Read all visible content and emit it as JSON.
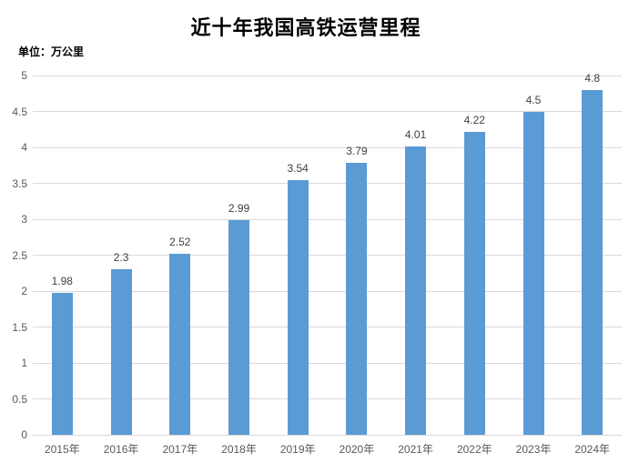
{
  "chart_data": {
    "type": "bar",
    "title": "近十年我国高铁运营里程",
    "unit_label": "单位：万公里",
    "categories": [
      "2015年",
      "2016年",
      "2017年",
      "2018年",
      "2019年",
      "2020年",
      "2021年",
      "2022年",
      "2023年",
      "2024年"
    ],
    "values": [
      1.98,
      2.3,
      2.52,
      2.99,
      3.54,
      3.79,
      4.01,
      4.22,
      4.5,
      4.8
    ],
    "value_labels": [
      "1.98",
      "2.3",
      "2.52",
      "2.99",
      "3.54",
      "3.79",
      "4.01",
      "4.22",
      "4.5",
      "4.8"
    ],
    "xlabel": "",
    "ylabel": "",
    "ylim": [
      0,
      5
    ],
    "ytick_step": 0.5,
    "yticks": [
      "0",
      "0.5",
      "1",
      "1.5",
      "2",
      "2.5",
      "3",
      "3.5",
      "4",
      "4.5",
      "5"
    ],
    "grid": true,
    "legend": "none",
    "bar_color": "#5B9BD5",
    "gridline_color": "#D9D9D9",
    "axis_label_color": "#595959",
    "data_label_color": "#404040",
    "title_color": "#000000",
    "background": "#FFFFFF"
  }
}
